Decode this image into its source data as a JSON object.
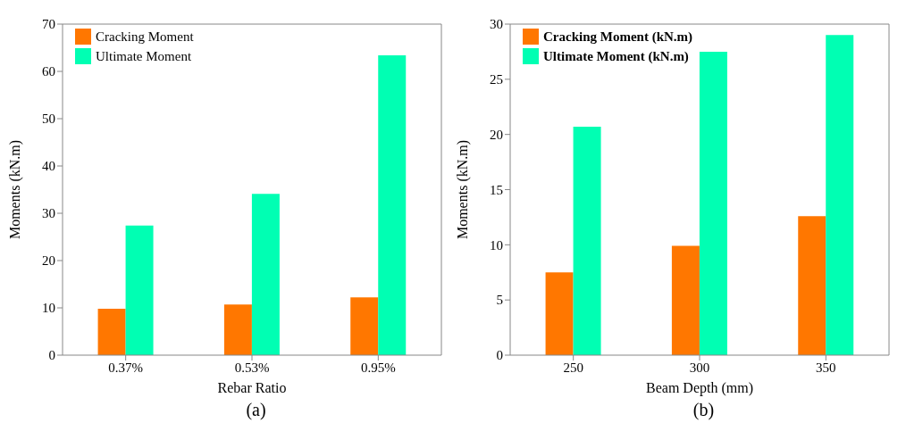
{
  "chart_data": [
    {
      "type": "bar",
      "categories": [
        "0.37%",
        "0.53%",
        "0.95%"
      ],
      "xlabel": "Rebar Ratio",
      "ylabel": "Moments (kN.m)",
      "ylim": [
        0,
        70
      ],
      "yticks": [
        0,
        10,
        20,
        30,
        40,
        50,
        60,
        70
      ],
      "grid": false,
      "legend": "top left",
      "annotations": [
        "(a)"
      ],
      "series": [
        {
          "name": "Cracking Moment",
          "color": "#ff7700",
          "values": [
            9.8,
            10.7,
            12.2
          ]
        },
        {
          "name": "Ultimate Moment",
          "color": "#00ffb3",
          "values": [
            27.4,
            34.1,
            63.4
          ]
        }
      ]
    },
    {
      "type": "bar",
      "categories": [
        "250",
        "300",
        "350"
      ],
      "xlabel": "Beam Depth (mm)",
      "ylabel": "Moments (kN.m)",
      "ylim": [
        0,
        30
      ],
      "yticks": [
        0,
        5,
        10,
        15,
        20,
        25,
        30
      ],
      "grid": false,
      "legend": "top left",
      "annotations": [
        "(b)"
      ],
      "series": [
        {
          "name": "Cracking Moment (kN.m)",
          "color": "#ff7700",
          "values": [
            7.5,
            9.9,
            12.6
          ]
        },
        {
          "name": "Ultimate Moment (kN.m)",
          "color": "#00ffb3",
          "values": [
            20.7,
            27.5,
            29.0
          ]
        }
      ]
    }
  ]
}
